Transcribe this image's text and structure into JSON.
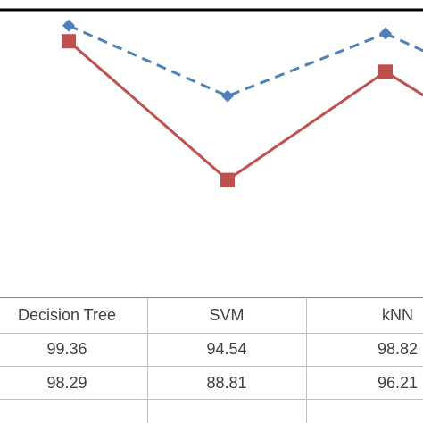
{
  "chart_data": {
    "type": "line",
    "categories": [
      "Decision Tree",
      "SVM",
      "kNN"
    ],
    "series": [
      {
        "values": [
          99.36,
          94.54,
          98.82
        ],
        "color": "#4F81BD",
        "style": "dashed",
        "marker": "diamond"
      },
      {
        "values": [
          98.29,
          88.81,
          96.21
        ],
        "color": "#C0504D",
        "style": "solid",
        "marker": "square"
      }
    ],
    "ylim": [
      80,
      100.5
    ],
    "grid": false
  },
  "table": {
    "headers": [
      "Decision Tree",
      "SVM",
      "kNN"
    ],
    "rows": [
      [
        "99.36",
        "94.54",
        "98.82"
      ],
      [
        "98.29",
        "88.81",
        "96.21"
      ]
    ]
  }
}
